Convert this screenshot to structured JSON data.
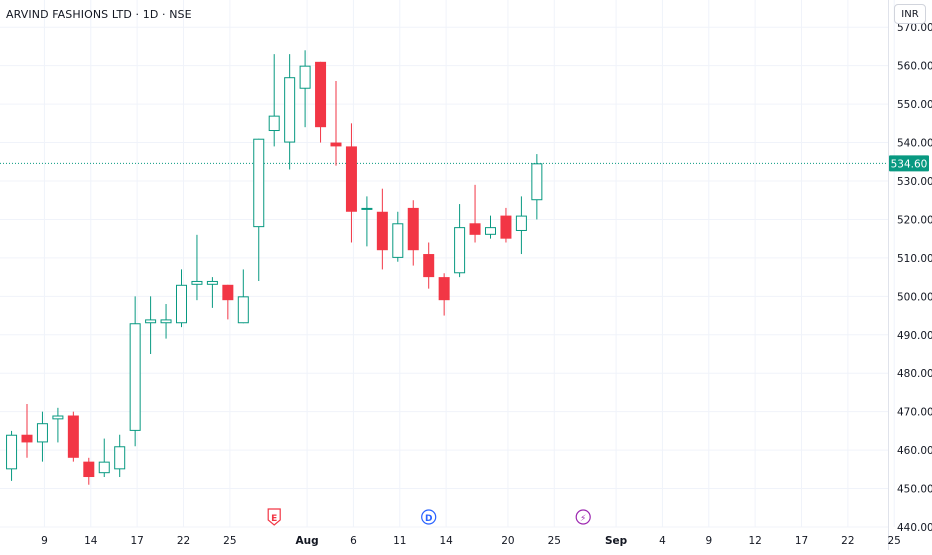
{
  "header": {
    "title": "ARVIND FASHIONS LTD · 1D · NSE",
    "currency": "INR"
  },
  "colors": {
    "up": "#089981",
    "down": "#f23645",
    "grid": "#f0f3fa",
    "axis_text": "#131722",
    "price_line": "#089981"
  },
  "last_price_label": "534.60",
  "events": [
    {
      "letter": "E",
      "date_index": 17,
      "type": "earnings",
      "color": "#f23645"
    },
    {
      "letter": "D",
      "date_index": 27,
      "type": "dividend",
      "color": "#2962ff"
    },
    {
      "letter": "⚡",
      "date_index": 37,
      "type": "split",
      "color": "#9c27b0"
    }
  ],
  "chart_data": {
    "type": "candlestick",
    "title": "ARVIND FASHIONS LTD · 1D · NSE",
    "xlabel": "",
    "ylabel": "",
    "ylim": [
      440,
      575
    ],
    "y_ticks": [
      440,
      450,
      460,
      470,
      480,
      490,
      500,
      510,
      520,
      530,
      540,
      550,
      560,
      570
    ],
    "y_tick_labels": [
      "440.00",
      "450.00",
      "460.00",
      "470.00",
      "480.00",
      "490.00",
      "500.00",
      "510.00",
      "520.00",
      "530.00",
      "540.00",
      "550.00",
      "560.00",
      "570.00"
    ],
    "x_tick_labels": [
      {
        "label": "9",
        "date_index": 1
      },
      {
        "label": "14",
        "date_index": 4
      },
      {
        "label": "17",
        "date_index": 7
      },
      {
        "label": "22",
        "date_index": 10
      },
      {
        "label": "25",
        "date_index": 13
      },
      {
        "label": "Aug",
        "date_index": 18
      },
      {
        "label": "6",
        "date_index": 21
      },
      {
        "label": "11",
        "date_index": 24
      },
      {
        "label": "14",
        "date_index": 27
      },
      {
        "label": "20",
        "date_index": 31
      },
      {
        "label": "25",
        "date_index": 34
      },
      {
        "label": "Sep",
        "date_index": 38
      },
      {
        "label": "4",
        "date_index": 41
      },
      {
        "label": "9",
        "date_index": 44
      },
      {
        "label": "12",
        "date_index": 47
      },
      {
        "label": "17",
        "date_index": 50
      },
      {
        "label": "22",
        "date_index": 53
      },
      {
        "label": "25",
        "date_index": 56
      }
    ],
    "candles": [
      {
        "o": 455,
        "h": 465,
        "l": 452,
        "c": 464
      },
      {
        "o": 464,
        "h": 472,
        "l": 458,
        "c": 462
      },
      {
        "o": 462,
        "h": 470,
        "l": 457,
        "c": 467
      },
      {
        "o": 468,
        "h": 471,
        "l": 462,
        "c": 469
      },
      {
        "o": 469,
        "h": 470,
        "l": 457,
        "c": 458
      },
      {
        "o": 457,
        "h": 458,
        "l": 451,
        "c": 453
      },
      {
        "o": 454,
        "h": 463,
        "l": 453,
        "c": 457
      },
      {
        "o": 455,
        "h": 464,
        "l": 453,
        "c": 461
      },
      {
        "o": 465,
        "h": 500,
        "l": 461,
        "c": 493
      },
      {
        "o": 493,
        "h": 500,
        "l": 485,
        "c": 494
      },
      {
        "o": 493,
        "h": 498,
        "l": 489,
        "c": 494
      },
      {
        "o": 493,
        "h": 507,
        "l": 492,
        "c": 503
      },
      {
        "o": 503,
        "h": 516,
        "l": 499,
        "c": 504
      },
      {
        "o": 503,
        "h": 505,
        "l": 497,
        "c": 504
      },
      {
        "o": 503,
        "h": 503,
        "l": 494,
        "c": 499
      },
      {
        "o": 493,
        "h": 507,
        "l": 493,
        "c": 500
      },
      {
        "o": 518,
        "h": 541,
        "l": 504,
        "c": 541
      },
      {
        "o": 543,
        "h": 563,
        "l": 539,
        "c": 547
      },
      {
        "o": 540,
        "h": 563,
        "l": 533,
        "c": 557
      },
      {
        "o": 554,
        "h": 564,
        "l": 544,
        "c": 560
      },
      {
        "o": 561,
        "h": 561,
        "l": 540,
        "c": 544
      },
      {
        "o": 540,
        "h": 556,
        "l": 534,
        "c": 539
      },
      {
        "o": 539,
        "h": 545,
        "l": 514,
        "c": 522
      },
      {
        "o": 523,
        "h": 526,
        "l": 513,
        "c": 523
      },
      {
        "o": 522,
        "h": 528,
        "l": 507,
        "c": 512
      },
      {
        "o": 510,
        "h": 522,
        "l": 509,
        "c": 519
      },
      {
        "o": 523,
        "h": 525,
        "l": 508,
        "c": 512
      },
      {
        "o": 511,
        "h": 514,
        "l": 502,
        "c": 505
      },
      {
        "o": 505,
        "h": 506,
        "l": 495,
        "c": 499
      },
      {
        "o": 506,
        "h": 524,
        "l": 505,
        "c": 518
      },
      {
        "o": 519,
        "h": 529,
        "l": 514,
        "c": 516
      },
      {
        "o": 516,
        "h": 521,
        "l": 515,
        "c": 518
      },
      {
        "o": 521,
        "h": 523,
        "l": 514,
        "c": 515
      },
      {
        "o": 517,
        "h": 526,
        "l": 511,
        "c": 521
      },
      {
        "o": 525,
        "h": 537,
        "l": 520,
        "c": 534.6
      }
    ]
  }
}
